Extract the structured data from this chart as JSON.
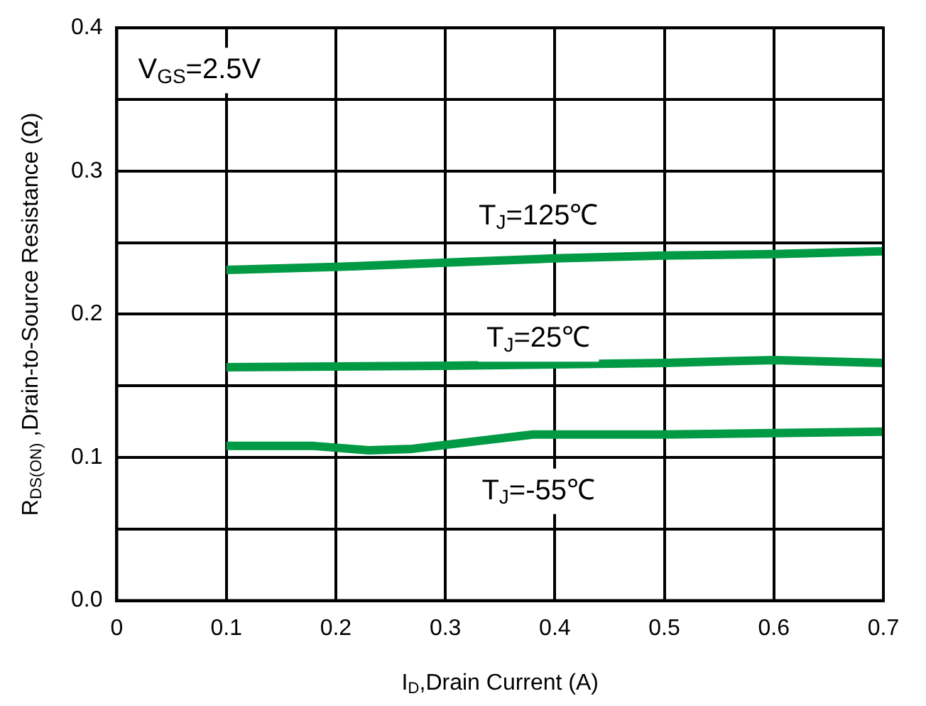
{
  "chart_data": {
    "type": "line",
    "xlabel": "I$_{D}$,Drain Current (A)",
    "ylabel": "R$_{DS(ON)}$ ,Drain-to-Source Resistance (Ω)",
    "annotations": [
      "V$_{GS}$=2.5V"
    ],
    "xlim": [
      0,
      0.7
    ],
    "xticks": [
      0,
      0.1,
      0.2,
      0.3,
      0.4,
      0.5,
      0.6,
      0.7
    ],
    "ylim": [
      0,
      0.4
    ],
    "yticks": [
      {
        "value": 0,
        "label": "0.0"
      },
      {
        "value": 0.05,
        "label": null
      },
      0.1,
      {
        "value": 0.15,
        "label": null
      },
      0.2,
      {
        "value": 0.25,
        "label": null
      },
      0.3,
      {
        "value": 0.35,
        "label": null
      },
      0.4
    ],
    "grid": true,
    "legend": false,
    "marker": "none",
    "line_style": "solid",
    "series": [
      {
        "name": "T$_{J}$=125℃",
        "color": "#009a44",
        "x": [
          0.1,
          0.2,
          0.3,
          0.4,
          0.5,
          0.6,
          0.7
        ],
        "values": [
          0.231,
          0.233,
          0.236,
          0.239,
          0.241,
          0.242,
          0.244
        ]
      },
      {
        "name": "T$_{J}$=25℃",
        "color": "#009a44",
        "x": [
          0.1,
          0.3,
          0.5,
          0.6,
          0.7
        ],
        "values": [
          0.163,
          0.164,
          0.166,
          0.168,
          0.166
        ]
      },
      {
        "name": "T$_{J}$=-55℃",
        "color": "#009a44",
        "x": [
          0.1,
          0.18,
          0.23,
          0.27,
          0.38,
          0.5,
          0.6,
          0.7
        ],
        "values": [
          0.108,
          0.108,
          0.105,
          0.106,
          0.116,
          0.116,
          0.117,
          0.118
        ]
      }
    ]
  }
}
